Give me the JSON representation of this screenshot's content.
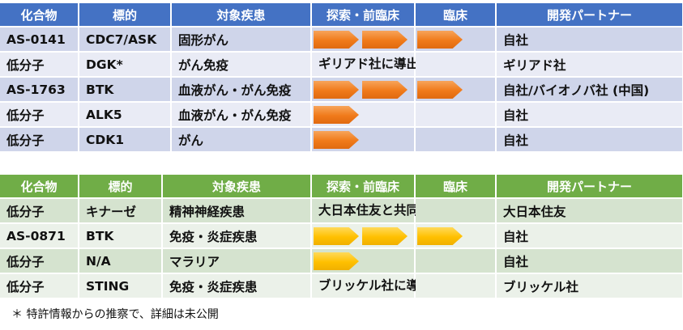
{
  "table1": {
    "headers": [
      "化合物",
      "標的",
      "対象疾患",
      "探索・前臨床",
      "臨床",
      "開発パートナー"
    ],
    "rows": [
      {
        "compound": "AS-0141",
        "target": "CDC7/ASK",
        "disease": "固形がん",
        "stage": "clinical",
        "span_text": "",
        "partner": "自社"
      },
      {
        "compound": "低分子",
        "target": "DGK*",
        "disease": "がん免疫",
        "stage": "licensed",
        "span_text": "ギリアド社に導出",
        "partner": "ギリアド社"
      },
      {
        "compound": "AS-1763",
        "target": "BTK",
        "disease": "血液がん・がん免疫",
        "stage": "clinical",
        "span_text": "",
        "partner": "自社/バイオノバ社 (中国)"
      },
      {
        "compound": "低分子",
        "target": "ALK5",
        "disease": "血液がん・がん免疫",
        "stage": "discovery",
        "span_text": "",
        "partner": "自社"
      },
      {
        "compound": "低分子",
        "target": "CDK1",
        "disease": "がん",
        "stage": "discovery",
        "span_text": "",
        "partner": "自社"
      }
    ]
  },
  "table2": {
    "headers": [
      "化合物",
      "標的",
      "対象疾患",
      "探索・前臨床",
      "臨床",
      "開発パートナー"
    ],
    "rows": [
      {
        "compound": "低分子",
        "target": "キナーゼ",
        "disease": "精神神経疾患",
        "stage": "licensed",
        "span_text": "大日本住友と共同研究",
        "partner": "大日本住友"
      },
      {
        "compound": "AS-0871",
        "target": "BTK",
        "disease": "免疫・炎症疾患",
        "stage": "clinical",
        "span_text": "",
        "partner": "自社"
      },
      {
        "compound": "低分子",
        "target": "N/A",
        "disease": "マラリア",
        "stage": "discovery",
        "span_text": "",
        "partner": "自社"
      },
      {
        "compound": "低分子",
        "target": "STING",
        "disease": "免疫・炎症疾患",
        "stage": "licensed",
        "span_text": "ブリッケル社に導出",
        "partner": "ブリッケル社"
      }
    ]
  },
  "colors": {
    "table1_header": "#4472c4",
    "table2_header": "#70ad47",
    "arrow_table1": "#f07a1a",
    "arrow_table2": "#ffc000"
  },
  "footnote": "＊ 特許情報からの推察で、詳細は未公開"
}
